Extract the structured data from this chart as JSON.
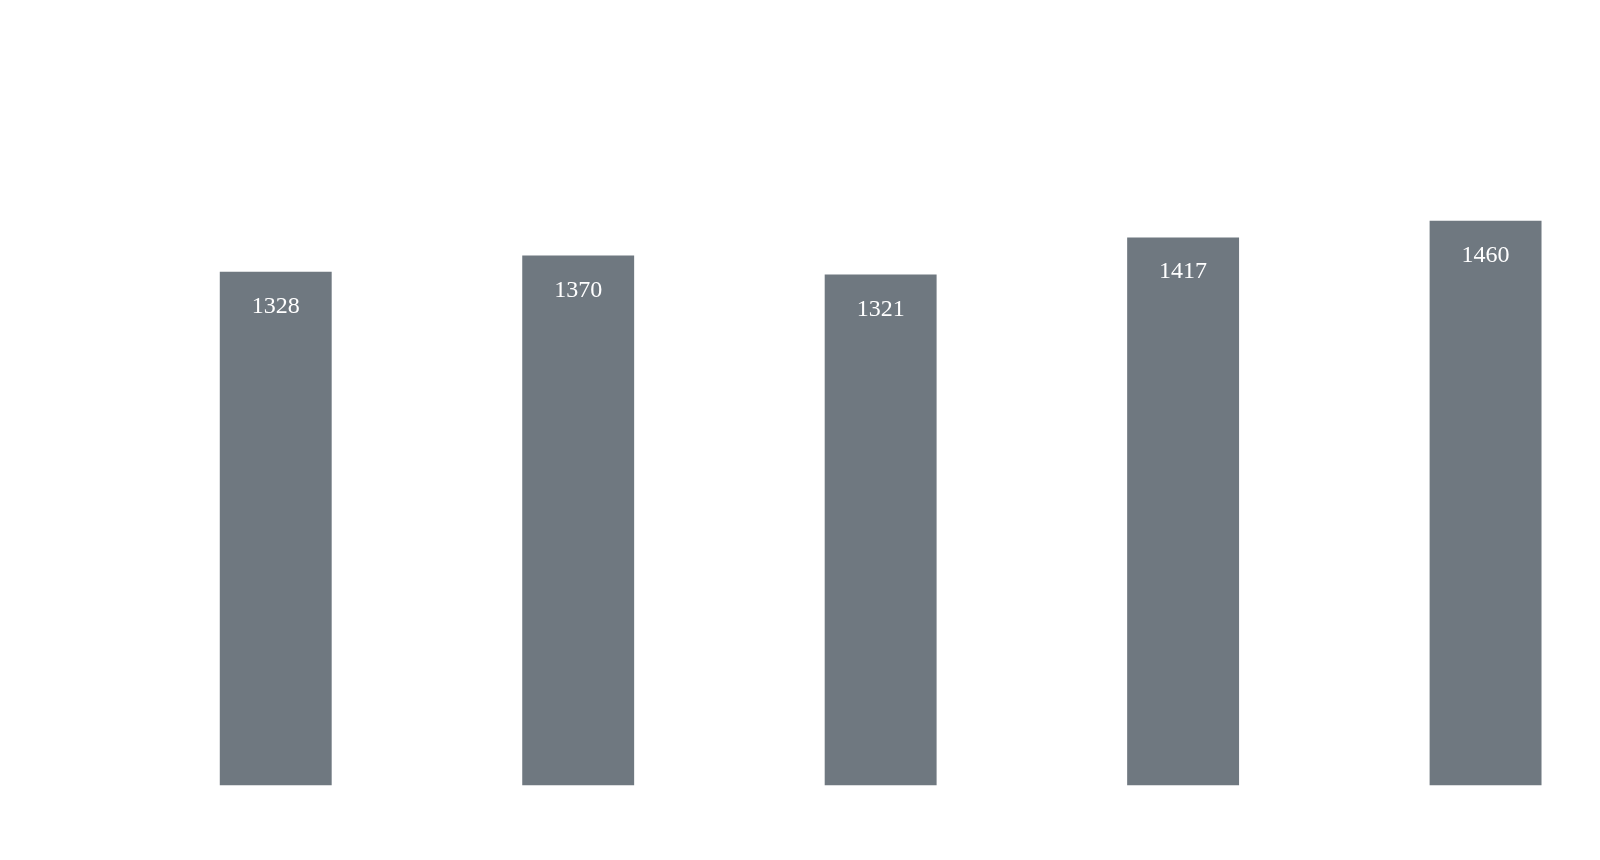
{
  "chart_data": {
    "type": "bar",
    "categories": [
      null,
      null,
      null,
      null,
      null
    ],
    "values": [
      1328,
      1370,
      1321,
      1417,
      1460
    ],
    "color": "#6f7880",
    "data_labels": true,
    "tick_labels": false
  }
}
